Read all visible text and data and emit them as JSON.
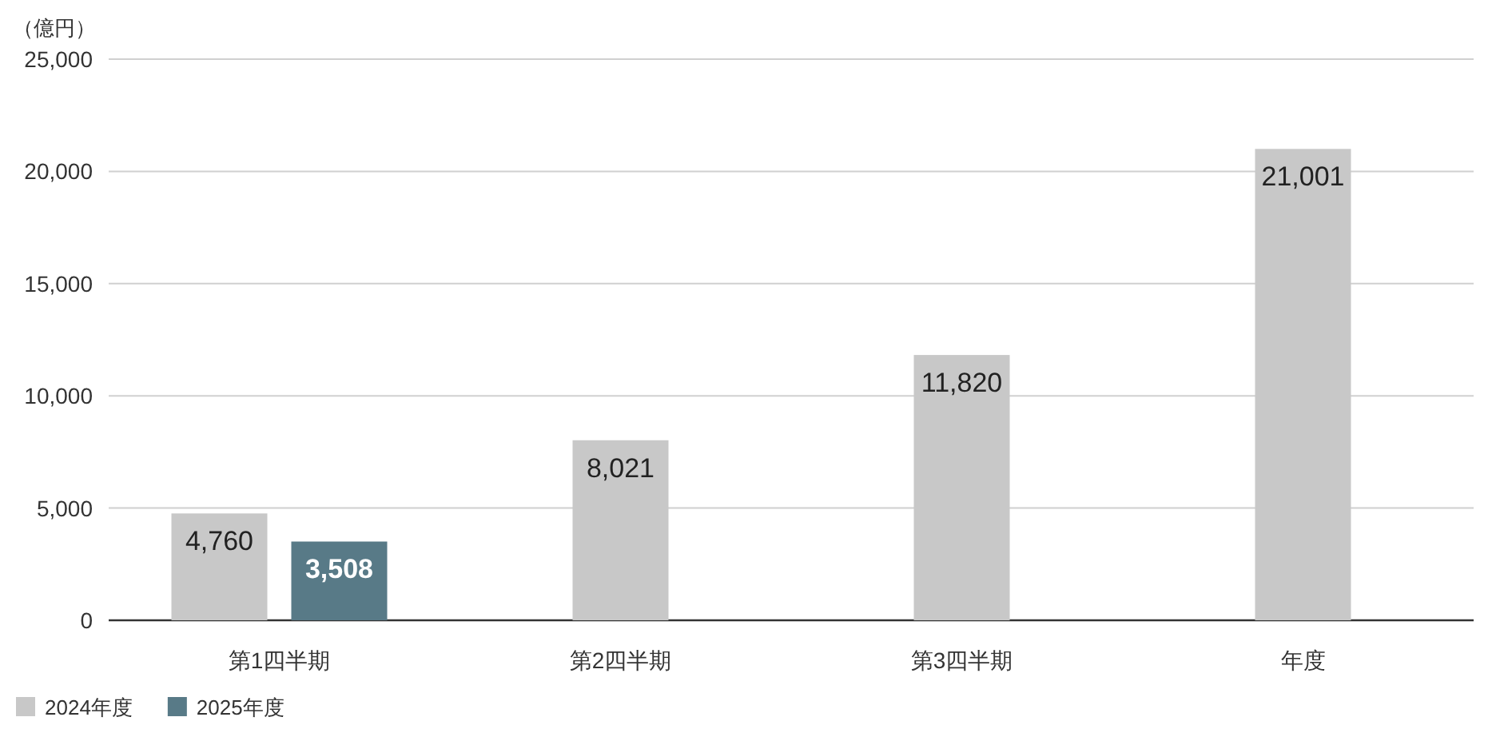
{
  "chart_data": {
    "type": "bar",
    "ylabel": "（億円）",
    "categories": [
      "第1四半期",
      "第2四半期",
      "第3四半期",
      "年度"
    ],
    "series": [
      {
        "name": "2024年度",
        "color": "#c8c8c8",
        "values": [
          4760,
          8021,
          11820,
          21001
        ]
      },
      {
        "name": "2025年度",
        "color": "#587a87",
        "values": [
          3508,
          null,
          null,
          null
        ]
      }
    ],
    "value_labels": [
      [
        "4,760",
        "8,021",
        "11,820",
        "21,001"
      ],
      [
        "3,508",
        null,
        null,
        null
      ]
    ],
    "ylim": [
      0,
      25000
    ],
    "yticks": [
      {
        "value": 0,
        "label": "0"
      },
      {
        "value": 5000,
        "label": "5,000"
      },
      {
        "value": 10000,
        "label": "10,000"
      },
      {
        "value": 15000,
        "label": "15,000"
      },
      {
        "value": 20000,
        "label": "20,000"
      },
      {
        "value": 25000,
        "label": "25,000"
      }
    ],
    "grid": "y",
    "legend": "bottom left"
  }
}
